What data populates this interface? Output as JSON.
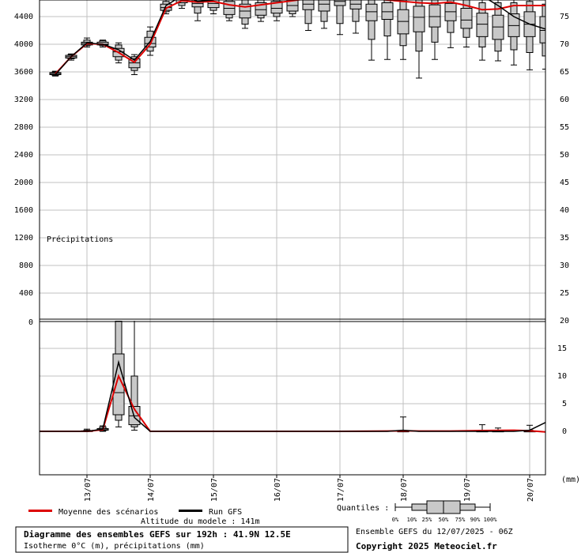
{
  "chart_data": [
    {
      "type": "box_line",
      "name_text": "Isotherme 0°C",
      "ylabel_left": "Isotherme 0°C (m)",
      "ylim": [
        0,
        4800
      ],
      "yticks_left": [
        0,
        400,
        800,
        1200,
        1600,
        2000,
        2400,
        2800,
        3200,
        3600,
        4000,
        4400
      ],
      "x_hours_range": [
        -6,
        186
      ],
      "x_ticks": [
        {
          "label": "13/07",
          "hour": 12
        },
        {
          "label": "14/07",
          "hour": 36
        },
        {
          "label": "15/07",
          "hour": 60
        },
        {
          "label": "16/07",
          "hour": 84
        },
        {
          "label": "17/07",
          "hour": 108
        },
        {
          "label": "18/07",
          "hour": 132
        },
        {
          "label": "19/07",
          "hour": 156
        },
        {
          "label": "20/07",
          "hour": 180
        }
      ],
      "boxes": [
        {
          "hour": 0,
          "q0": 3540,
          "q10": 3550,
          "q25": 3560,
          "q50": 3575,
          "q75": 3590,
          "q90": 3600,
          "q100": 3610
        },
        {
          "hour": 6,
          "q0": 3770,
          "q10": 3790,
          "q25": 3800,
          "q50": 3820,
          "q75": 3840,
          "q90": 3850,
          "q100": 3860
        },
        {
          "hour": 12,
          "q0": 3960,
          "q10": 3980,
          "q25": 3990,
          "q50": 4010,
          "q75": 4030,
          "q90": 4060,
          "q100": 4090
        },
        {
          "hour": 18,
          "q0": 3960,
          "q10": 3980,
          "q25": 3990,
          "q50": 4000,
          "q75": 4030,
          "q90": 4050,
          "q100": 4060
        },
        {
          "hour": 24,
          "q0": 3730,
          "q10": 3770,
          "q25": 3820,
          "q50": 3890,
          "q75": 3940,
          "q90": 3990,
          "q100": 4020
        },
        {
          "hour": 30,
          "q0": 3560,
          "q10": 3620,
          "q25": 3660,
          "q50": 3730,
          "q75": 3790,
          "q90": 3820,
          "q100": 3850
        },
        {
          "hour": 36,
          "q0": 3840,
          "q10": 3900,
          "q25": 3960,
          "q50": 4010,
          "q75": 4100,
          "q90": 4190,
          "q100": 4250
        },
        {
          "hour": 42,
          "q0": 4440,
          "q10": 4470,
          "q25": 4490,
          "q50": 4530,
          "q75": 4580,
          "q90": 4620,
          "q100": 4650
        },
        {
          "hour": 48,
          "q0": 4520,
          "q10": 4560,
          "q25": 4600,
          "q50": 4640,
          "q75": 4680,
          "q90": 4720,
          "q100": 4760
        },
        {
          "hour": 54,
          "q0": 4340,
          "q10": 4450,
          "q25": 4540,
          "q50": 4590,
          "q75": 4640,
          "q90": 4700,
          "q100": 4760
        },
        {
          "hour": 60,
          "q0": 4440,
          "q10": 4490,
          "q25": 4530,
          "q50": 4590,
          "q75": 4640,
          "q90": 4700,
          "q100": 4760
        },
        {
          "hour": 66,
          "q0": 4340,
          "q10": 4380,
          "q25": 4430,
          "q50": 4520,
          "q75": 4620,
          "q90": 4700,
          "q100": 4760
        },
        {
          "hour": 72,
          "q0": 4230,
          "q10": 4290,
          "q25": 4380,
          "q50": 4480,
          "q75": 4580,
          "q90": 4680,
          "q100": 4760
        },
        {
          "hour": 78,
          "q0": 4330,
          "q10": 4380,
          "q25": 4420,
          "q50": 4500,
          "q75": 4600,
          "q90": 4690,
          "q100": 4760
        },
        {
          "hour": 84,
          "q0": 4340,
          "q10": 4400,
          "q25": 4450,
          "q50": 4520,
          "q75": 4620,
          "q90": 4690,
          "q100": 4760
        },
        {
          "hour": 90,
          "q0": 4400,
          "q10": 4440,
          "q25": 4480,
          "q50": 4560,
          "q75": 4640,
          "q90": 4710,
          "q100": 4760
        },
        {
          "hour": 96,
          "q0": 4200,
          "q10": 4300,
          "q25": 4500,
          "q50": 4580,
          "q75": 4660,
          "q90": 4720,
          "q100": 4760
        },
        {
          "hour": 102,
          "q0": 4230,
          "q10": 4330,
          "q25": 4480,
          "q50": 4580,
          "q75": 4660,
          "q90": 4720,
          "q100": 4760
        },
        {
          "hour": 108,
          "q0": 4140,
          "q10": 4300,
          "q25": 4560,
          "q50": 4620,
          "q75": 4680,
          "q90": 4730,
          "q100": 4760
        },
        {
          "hour": 114,
          "q0": 4160,
          "q10": 4330,
          "q25": 4510,
          "q50": 4580,
          "q75": 4650,
          "q90": 4710,
          "q100": 4760
        },
        {
          "hour": 120,
          "q0": 3770,
          "q10": 4070,
          "q25": 4340,
          "q50": 4470,
          "q75": 4580,
          "q90": 4680,
          "q100": 4760
        },
        {
          "hour": 126,
          "q0": 3780,
          "q10": 4120,
          "q25": 4360,
          "q50": 4470,
          "q75": 4600,
          "q90": 4700,
          "q100": 4760
        },
        {
          "hour": 132,
          "q0": 3780,
          "q10": 3980,
          "q25": 4150,
          "q50": 4330,
          "q75": 4500,
          "q90": 4650,
          "q100": 4760
        },
        {
          "hour": 138,
          "q0": 3510,
          "q10": 3900,
          "q25": 4180,
          "q50": 4390,
          "q75": 4550,
          "q90": 4670,
          "q100": 4760
        },
        {
          "hour": 144,
          "q0": 3780,
          "q10": 4030,
          "q25": 4250,
          "q50": 4400,
          "q75": 4570,
          "q90": 4680,
          "q100": 4760
        },
        {
          "hour": 150,
          "q0": 3950,
          "q10": 4170,
          "q25": 4340,
          "q50": 4470,
          "q75": 4590,
          "q90": 4700,
          "q100": 4760
        },
        {
          "hour": 156,
          "q0": 3960,
          "q10": 4100,
          "q25": 4230,
          "q50": 4350,
          "q75": 4520,
          "q90": 4660,
          "q100": 4760
        },
        {
          "hour": 162,
          "q0": 3770,
          "q10": 3960,
          "q25": 4110,
          "q50": 4290,
          "q75": 4450,
          "q90": 4600,
          "q100": 4760
        },
        {
          "hour": 168,
          "q0": 3760,
          "q10": 3900,
          "q25": 4070,
          "q50": 4250,
          "q75": 4420,
          "q90": 4600,
          "q100": 4760
        },
        {
          "hour": 174,
          "q0": 3700,
          "q10": 3920,
          "q25": 4110,
          "q50": 4270,
          "q75": 4440,
          "q90": 4600,
          "q100": 4760
        },
        {
          "hour": 180,
          "q0": 3630,
          "q10": 3880,
          "q25": 4110,
          "q50": 4290,
          "q75": 4470,
          "q90": 4620,
          "q100": 4760
        },
        {
          "hour": 186,
          "q0": 3640,
          "q10": 3830,
          "q25": 4020,
          "q50": 4200,
          "q75": 4400,
          "q90": 4580,
          "q100": 4760
        }
      ],
      "mean_series": [
        [
          0,
          3570
        ],
        [
          6,
          3820
        ],
        [
          12,
          4010
        ],
        [
          18,
          4000
        ],
        [
          24,
          3880
        ],
        [
          30,
          3740
        ],
        [
          36,
          4000
        ],
        [
          42,
          4520
        ],
        [
          48,
          4630
        ],
        [
          54,
          4610
        ],
        [
          60,
          4620
        ],
        [
          66,
          4570
        ],
        [
          72,
          4540
        ],
        [
          78,
          4570
        ],
        [
          84,
          4600
        ],
        [
          90,
          4630
        ],
        [
          96,
          4660
        ],
        [
          102,
          4680
        ],
        [
          108,
          4700
        ],
        [
          114,
          4690
        ],
        [
          120,
          4660
        ],
        [
          126,
          4640
        ],
        [
          132,
          4620
        ],
        [
          138,
          4600
        ],
        [
          144,
          4590
        ],
        [
          150,
          4610
        ],
        [
          156,
          4560
        ],
        [
          162,
          4500
        ],
        [
          168,
          4510
        ],
        [
          174,
          4560
        ],
        [
          180,
          4560
        ],
        [
          186,
          4560
        ]
      ],
      "gfs_series": [
        [
          0,
          3560
        ],
        [
          6,
          3820
        ],
        [
          12,
          4020
        ],
        [
          18,
          4000
        ],
        [
          24,
          3920
        ],
        [
          30,
          3770
        ],
        [
          36,
          4040
        ],
        [
          42,
          4560
        ],
        [
          48,
          4700
        ],
        [
          54,
          4620
        ],
        [
          60,
          4640
        ],
        [
          66,
          4720
        ],
        [
          72,
          4760
        ],
        [
          78,
          4760
        ],
        [
          84,
          4760
        ],
        [
          90,
          4760
        ],
        [
          96,
          4760
        ],
        [
          102,
          4760
        ],
        [
          108,
          4760
        ],
        [
          114,
          4760
        ],
        [
          120,
          4760
        ],
        [
          126,
          4760
        ],
        [
          132,
          4760
        ],
        [
          138,
          4760
        ],
        [
          144,
          4760
        ],
        [
          150,
          4760
        ],
        [
          156,
          4760
        ],
        [
          162,
          4700
        ],
        [
          168,
          4560
        ],
        [
          174,
          4400
        ],
        [
          180,
          4290
        ],
        [
          186,
          4220
        ]
      ]
    },
    {
      "type": "box_line",
      "name_text": "Précipitations",
      "ylabel_right": "Précipitations (mm)",
      "ylim": [
        -8,
        20
      ],
      "yticks_right": [
        0,
        5,
        10,
        15,
        20
      ],
      "unit_label": "(mm)",
      "boxes": [
        {
          "hour": 12,
          "q0": 0,
          "q10": 0,
          "q25": 0,
          "q50": 0,
          "q75": 0.1,
          "q90": 0.2,
          "q100": 0.4
        },
        {
          "hour": 18,
          "q0": 0,
          "q10": 0.1,
          "q25": 0.2,
          "q50": 0.3,
          "q75": 0.5,
          "q90": 0.8,
          "q100": 1.0
        },
        {
          "hour": 24,
          "q0": 0.8,
          "q10": 2.0,
          "q25": 3.0,
          "q50": 7.0,
          "q75": 14.0,
          "q90": 20.0,
          "q100": 33.0
        },
        {
          "hour": 30,
          "q0": 0.2,
          "q10": 0.8,
          "q25": 1.2,
          "q50": 2.8,
          "q75": 4.5,
          "q90": 10.0,
          "q100": 28.5
        },
        {
          "hour": 132,
          "q0": 0,
          "q10": 0,
          "q25": 0,
          "q50": 0,
          "q75": 0.05,
          "q90": 0.1,
          "q100": 2.6
        },
        {
          "hour": 162,
          "q0": 0,
          "q10": 0,
          "q25": 0,
          "q50": 0,
          "q75": 0.05,
          "q90": 0.2,
          "q100": 1.2
        },
        {
          "hour": 168,
          "q0": 0,
          "q10": 0,
          "q25": 0,
          "q50": 0,
          "q75": 0.05,
          "q90": 0.1,
          "q100": 0.6
        },
        {
          "hour": 180,
          "q0": 0,
          "q10": 0,
          "q25": 0,
          "q50": 0,
          "q75": 0.05,
          "q90": 0.2,
          "q100": 1.1
        }
      ],
      "mean_series": [
        [
          -6,
          0
        ],
        [
          12,
          0
        ],
        [
          18,
          0.3
        ],
        [
          24,
          10
        ],
        [
          30,
          4
        ],
        [
          36,
          0
        ],
        [
          60,
          0
        ],
        [
          84,
          0
        ],
        [
          108,
          0
        ],
        [
          126,
          0.05
        ],
        [
          132,
          0.1
        ],
        [
          138,
          0.05
        ],
        [
          150,
          0.05
        ],
        [
          162,
          0.15
        ],
        [
          174,
          0.2
        ],
        [
          180,
          0.1
        ],
        [
          186,
          -0.1
        ]
      ],
      "gfs_series": [
        [
          -6,
          0
        ],
        [
          12,
          0
        ],
        [
          18,
          0.4
        ],
        [
          24,
          12.5
        ],
        [
          30,
          2.5
        ],
        [
          36,
          0
        ],
        [
          60,
          0
        ],
        [
          84,
          0
        ],
        [
          108,
          0
        ],
        [
          126,
          0
        ],
        [
          132,
          0.2
        ],
        [
          138,
          0
        ],
        [
          162,
          0
        ],
        [
          174,
          0
        ],
        [
          180,
          0.2
        ],
        [
          186,
          1.6
        ]
      ]
    }
  ],
  "title_label": "Précipitations",
  "legend": {
    "mean_label": "Moyenne des scénarios",
    "mean_color": "#dd0000",
    "gfs_label": "Run GFS",
    "gfs_color": "#000000",
    "quantiles_label": "Quantiles :",
    "quantile_ticks": [
      "0%",
      "10%",
      "25%",
      "50%",
      "75%",
      "90%",
      "100%"
    ]
  },
  "footer": {
    "altitude": "Altitude du modele : 141m",
    "diagram_title": "Diagramme des ensembles GEFS sur 192h : 41.9N 12.5E",
    "diagram_subtitle": "Isotherme 0°C (m), précipitations (mm)",
    "ensemble_run": "Ensemble GEFS du 12/07/2025 - 06Z",
    "copyright": "Copyright 2025 Meteociel.fr"
  },
  "right_axis_upper_ticks": [
    20,
    25,
    30,
    35,
    40,
    45,
    50,
    55,
    60,
    65,
    70,
    75
  ]
}
